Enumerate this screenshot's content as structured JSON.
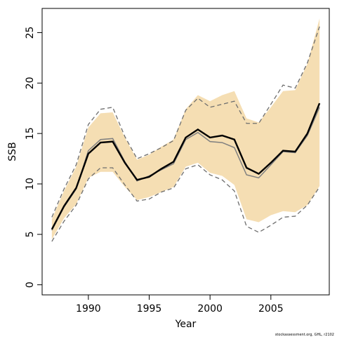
{
  "chart_data": {
    "type": "line",
    "xlabel": "Year",
    "ylabel": "SSB",
    "xlim": [
      1986.2,
      2009.8
    ],
    "ylim": [
      -1.0,
      27.4
    ],
    "x_ticks": [
      1990,
      1995,
      2000,
      2005
    ],
    "y_ticks": [
      0,
      5,
      10,
      15,
      20,
      25
    ],
    "grid": false,
    "legend": "none",
    "colors": {
      "band": "#f5deb3",
      "estimate": "#000000",
      "previous_estimate": "#808080",
      "previous_bounds": "#6e6e6e"
    },
    "x": [
      1987,
      1988,
      1989,
      1990,
      1991,
      1992,
      1993,
      1994,
      1995,
      1996,
      1997,
      1998,
      1999,
      2000,
      2001,
      2002,
      2003,
      2004,
      2005,
      2006,
      2007,
      2008,
      2009
    ],
    "series": [
      {
        "role": "band_upper",
        "values": [
          6.5,
          9.3,
          11.7,
          15.6,
          17.0,
          17.1,
          14.6,
          12.4,
          12.9,
          13.7,
          14.4,
          17.4,
          18.8,
          18.2,
          18.8,
          19.2,
          16.5,
          16.1,
          17.6,
          19.2,
          19.3,
          21.9,
          26.4
        ]
      },
      {
        "role": "band_lower",
        "values": [
          4.5,
          6.6,
          8.0,
          10.6,
          11.2,
          11.2,
          9.7,
          8.4,
          8.7,
          9.2,
          9.7,
          11.7,
          12.1,
          11.1,
          10.8,
          9.9,
          6.5,
          6.2,
          6.9,
          7.3,
          7.2,
          7.9,
          9.8
        ]
      },
      {
        "role": "estimate",
        "values": [
          5.5,
          7.8,
          9.6,
          13.0,
          14.1,
          14.2,
          12.1,
          10.4,
          10.7,
          11.5,
          12.2,
          14.6,
          15.4,
          14.6,
          14.8,
          14.4,
          11.6,
          11.0,
          12.1,
          13.3,
          13.2,
          15.0,
          18.0
        ]
      },
      {
        "role": "previous_estimate",
        "values": [
          5.4,
          7.7,
          9.5,
          13.3,
          14.4,
          14.5,
          12.2,
          10.3,
          10.8,
          11.4,
          12.0,
          14.4,
          15.1,
          14.2,
          14.1,
          13.6,
          10.9,
          10.6,
          11.9,
          13.2,
          13.1,
          14.8,
          17.6
        ]
      },
      {
        "role": "previous_upper",
        "values": [
          6.7,
          9.5,
          11.9,
          15.9,
          17.4,
          17.6,
          14.7,
          12.5,
          13.0,
          13.6,
          14.3,
          17.3,
          18.5,
          17.6,
          17.9,
          18.2,
          16.0,
          16.0,
          17.9,
          19.8,
          19.5,
          22.0,
          25.6
        ]
      },
      {
        "role": "previous_lower",
        "values": [
          4.3,
          6.3,
          7.9,
          10.5,
          11.6,
          11.6,
          9.9,
          8.3,
          8.5,
          9.2,
          9.6,
          11.5,
          11.9,
          10.9,
          10.4,
          9.3,
          5.8,
          5.2,
          5.9,
          6.7,
          6.8,
          7.9,
          9.7
        ]
      }
    ]
  },
  "credit": "stockassessment.org, GHL, r2102"
}
